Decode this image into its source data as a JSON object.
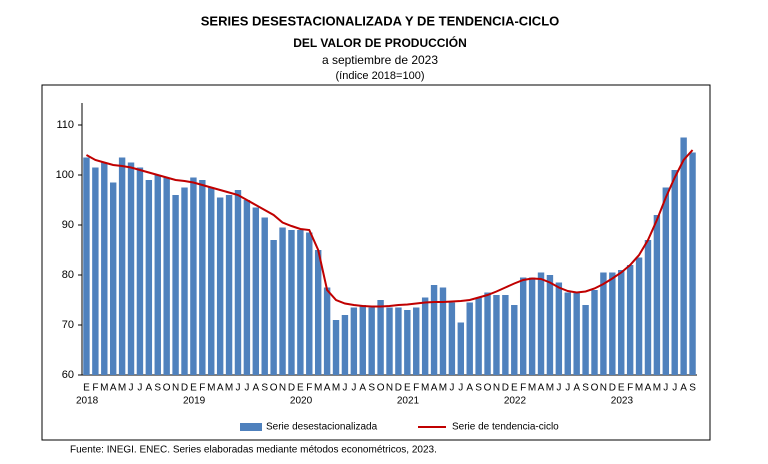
{
  "chart_data": {
    "type": "bar_line",
    "title": "SERIES DESESTACIONALIZADA Y DE TENDENCIA-CICLO",
    "subtitle": "DEL VALOR DE PRODUCCIÓN",
    "subtitle2": "a septiembre de 2023",
    "subtitle3": "(índice 2018=100)",
    "categories": [
      "E",
      "F",
      "M",
      "A",
      "M",
      "J",
      "J",
      "A",
      "S",
      "O",
      "N",
      "D",
      "E",
      "F",
      "M",
      "A",
      "M",
      "J",
      "J",
      "A",
      "S",
      "O",
      "N",
      "D",
      "E",
      "F",
      "M",
      "A",
      "M",
      "J",
      "J",
      "A",
      "S",
      "O",
      "N",
      "D",
      "E",
      "F",
      "M",
      "A",
      "M",
      "J",
      "J",
      "A",
      "S",
      "O",
      "N",
      "D",
      "E",
      "F",
      "M",
      "A",
      "M",
      "J",
      "J",
      "A",
      "S",
      "O",
      "N",
      "D",
      "E",
      "F",
      "M",
      "A",
      "M",
      "J",
      "J",
      "A",
      "S"
    ],
    "year_labels": [
      "2018",
      null,
      null,
      null,
      null,
      null,
      null,
      null,
      null,
      null,
      null,
      null,
      "2019",
      null,
      null,
      null,
      null,
      null,
      null,
      null,
      null,
      null,
      null,
      null,
      "2020",
      null,
      null,
      null,
      null,
      null,
      null,
      null,
      null,
      null,
      null,
      null,
      "2021",
      null,
      null,
      null,
      null,
      null,
      null,
      null,
      null,
      null,
      null,
      null,
      "2022",
      null,
      null,
      null,
      null,
      null,
      null,
      null,
      null,
      null,
      null,
      null,
      "2023",
      null,
      null,
      null,
      null,
      null,
      null,
      null,
      null
    ],
    "series": [
      {
        "name": "Serie desestacionalizada",
        "type": "bar",
        "color": "#4f81bd",
        "values": [
          103.5,
          101.5,
          102.5,
          98.5,
          103.5,
          102.5,
          101.5,
          99,
          100,
          99.5,
          96,
          97.5,
          99.5,
          99,
          97.5,
          95.5,
          96,
          97,
          95,
          93.5,
          91.5,
          87,
          89.5,
          89,
          89,
          88.5,
          85,
          77.5,
          71,
          72,
          73.5,
          74,
          73.5,
          75,
          73.5,
          73.5,
          73,
          73.5,
          75.5,
          78,
          77.5,
          74.5,
          70.5,
          74.5,
          75.5,
          76.5,
          76,
          76,
          74,
          79.5,
          79.5,
          80.5,
          80,
          78.5,
          76.5,
          76.5,
          74,
          77,
          80.5,
          80.5,
          81,
          82,
          83.5,
          87,
          92,
          97.5,
          101,
          107.5,
          104.5
        ]
      },
      {
        "name": "Serie de tendencia-ciclo",
        "type": "line",
        "color": "#c00000",
        "values": [
          104,
          103,
          102.5,
          102,
          101.8,
          101.5,
          101,
          100.5,
          100,
          99.5,
          99,
          98.8,
          98.5,
          98,
          97.5,
          97,
          96.5,
          96,
          95,
          94,
          93,
          92,
          90.5,
          89.8,
          89.2,
          89,
          85,
          77,
          75,
          74.3,
          74,
          73.8,
          73.7,
          73.7,
          73.8,
          74,
          74.1,
          74.3,
          74.5,
          74.6,
          74.6,
          74.7,
          74.8,
          75,
          75.5,
          76,
          76.7,
          77.5,
          78.3,
          79,
          79.3,
          79.2,
          78.5,
          77.5,
          76.8,
          76.5,
          76.7,
          77.3,
          78.2,
          79.3,
          80.5,
          82,
          84,
          87,
          91,
          95.5,
          99.5,
          103,
          105
        ]
      }
    ],
    "ylim": [
      60,
      112
    ],
    "yticks": [
      60,
      70,
      80,
      90,
      100,
      110
    ],
    "grid": false,
    "footnote": "Fuente: INEGI. ENEC. Series elaboradas mediante métodos econométricos, 2023."
  }
}
